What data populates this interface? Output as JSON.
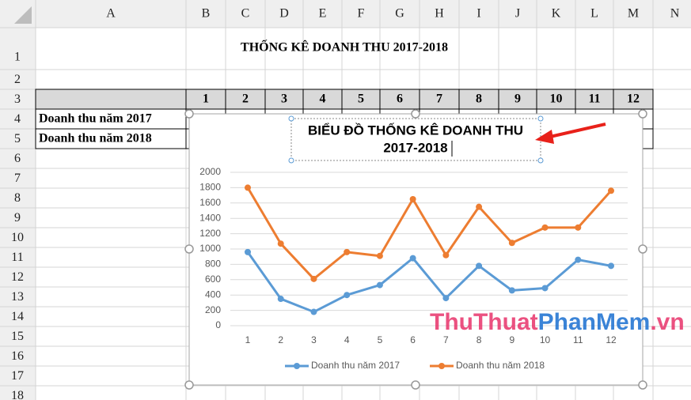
{
  "sheet": {
    "columns": [
      "A",
      "B",
      "C",
      "D",
      "E",
      "F",
      "G",
      "H",
      "I",
      "J",
      "K",
      "L",
      "M",
      "N"
    ],
    "rows": [
      1,
      2,
      3,
      4,
      5,
      6,
      7,
      8,
      9,
      10,
      11,
      12,
      13,
      14,
      15,
      16,
      17,
      18
    ],
    "title": "THỐNG KÊ DOANH THU 2017-2018",
    "row3": [
      1,
      2,
      3,
      4,
      5,
      6,
      7,
      8,
      9,
      10,
      11,
      12
    ],
    "row_labels": [
      "Doanh thu năm 2017",
      "Doanh thu năm 2018"
    ]
  },
  "watermark": [
    "ThuThuat",
    "PhanMem",
    ".vn"
  ],
  "chart_data": {
    "type": "line",
    "title": [
      "BIỂU ĐỒ THỐNG KÊ DOANH THU",
      "2017-2018"
    ],
    "categories": [
      1,
      2,
      3,
      4,
      5,
      6,
      7,
      8,
      9,
      10,
      11,
      12
    ],
    "series": [
      {
        "name": "Doanh thu năm 2017",
        "color": "#5b9bd5",
        "values": [
          960,
          350,
          180,
          400,
          530,
          880,
          360,
          780,
          460,
          490,
          860,
          780
        ]
      },
      {
        "name": "Doanh thu năm 2018",
        "color": "#ed7d31",
        "values": [
          1800,
          1070,
          610,
          960,
          910,
          1650,
          920,
          1550,
          1080,
          1280,
          1280,
          1760
        ]
      }
    ],
    "ylim": [
      0,
      2000
    ],
    "yticks": [
      0,
      200,
      400,
      600,
      800,
      1000,
      1200,
      1400,
      1600,
      1800,
      2000
    ],
    "grid": true,
    "legend": "bottom"
  }
}
